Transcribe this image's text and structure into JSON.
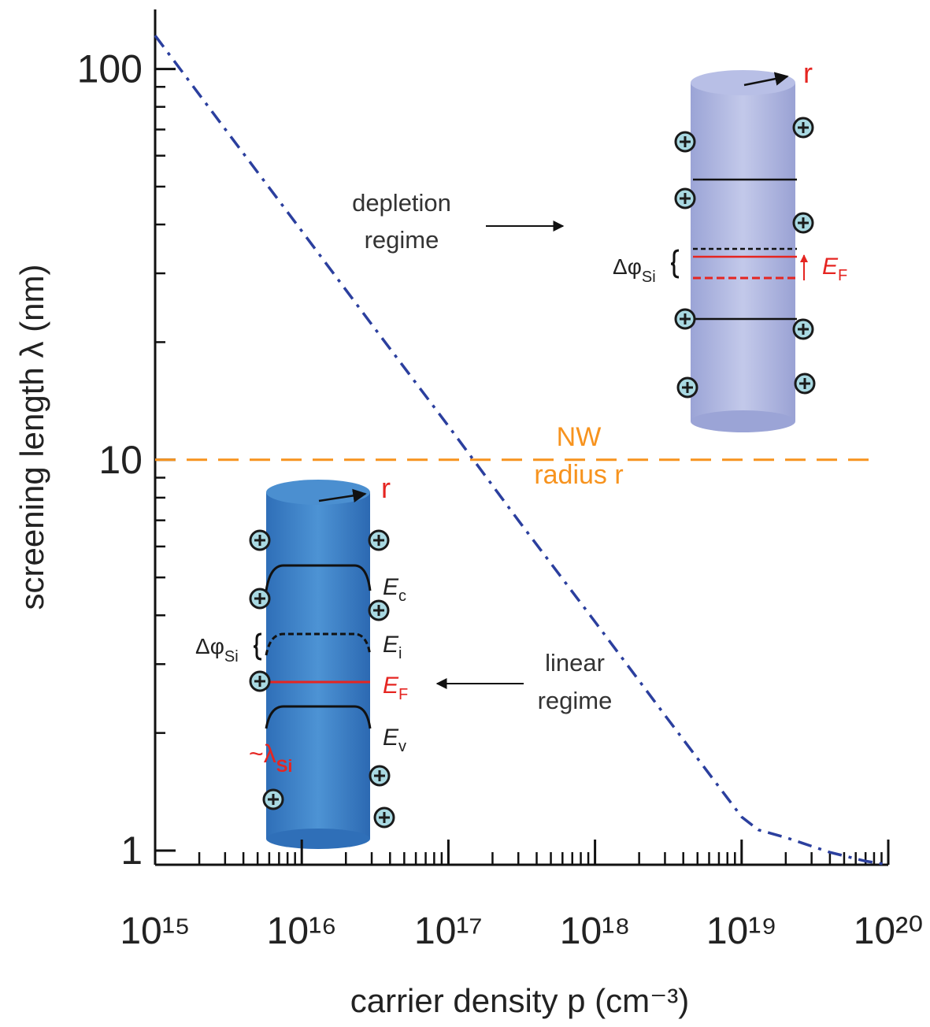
{
  "chart_data": {
    "type": "line",
    "x_label": "carrier density p (cm⁻³)",
    "y_label": "screening length λ (nm)",
    "log_x": true,
    "log_y": true,
    "color": "#2b3f9e",
    "x": [
      1000000000000000.0,
      3000000000000000.0,
      1e+16,
      3e+16,
      1e+17,
      3e+17,
      1e+18,
      3e+18,
      1e+19,
      1.3e+19,
      2e+19,
      4e+19,
      7e+19,
      1e+20
    ],
    "values": [
      121.7,
      70.2,
      38.5,
      22.2,
      12.2,
      7.0,
      3.85,
      2.22,
      1.22,
      1.13,
      1.08,
      0.99,
      0.94,
      0.92
    ],
    "xlim": [
      1000000000000000.0,
      1e+20
    ],
    "ylim": [
      0.92,
      142
    ],
    "xticks": [
      {
        "value": 1000000000000000.0,
        "label": "10¹⁵"
      },
      {
        "value": 1e+16,
        "label": "10¹⁶"
      },
      {
        "value": 1e+17,
        "label": "10¹⁷"
      },
      {
        "value": 1e+18,
        "label": "10¹⁸"
      },
      {
        "value": 1e+19,
        "label": "10¹⁹"
      },
      {
        "value": 1e+20,
        "label": "10²⁰"
      }
    ],
    "yticks": [
      1,
      10,
      100
    ],
    "xminor_ticks": [
      2000000000000000.0,
      3000000000000000.0,
      4000000000000000.0,
      5000000000000000.0,
      6000000000000000.0,
      7000000000000000.0,
      8000000000000000.0,
      9000000000000000.0,
      2e+16,
      3e+16,
      4e+16,
      5e+16,
      6e+16,
      7e+16,
      8e+16,
      9e+16,
      2e+17,
      3e+17,
      4e+17,
      5e+17,
      6e+17,
      7e+17,
      8e+17,
      9e+17,
      2e+18,
      3e+18,
      4e+18,
      5e+18,
      6e+18,
      7e+18,
      8e+18,
      9e+18,
      2e+19,
      3e+19,
      4e+19,
      5e+19,
      6e+19,
      7e+19,
      8e+19,
      9e+19
    ],
    "yminor_ticks": [
      2,
      3,
      4,
      5,
      6,
      7,
      8,
      9,
      20,
      30,
      40,
      50,
      60,
      70,
      80,
      90
    ],
    "reference_line": {
      "value": 10,
      "color": "#f7931e",
      "label": [
        "NW",
        "radius r"
      ]
    },
    "annotations": {
      "depletion": [
        "depletion",
        "regime"
      ],
      "linear": [
        "linear",
        "regime"
      ],
      "inset_depletion": {
        "radius": "r",
        "delta_phi": "Δφ",
        "delta_phi_sub": "Si",
        "fermi": "E",
        "fermi_sub": "F"
      },
      "inset_linear": {
        "radius": "r",
        "delta_phi": "Δφ",
        "delta_phi_sub": "Si",
        "conduction": "E",
        "conduction_sub": "c",
        "intrinsic": "E",
        "intrinsic_sub": "i",
        "fermi": "E",
        "fermi_sub": "F",
        "valence": "E",
        "valence_sub": "v",
        "screening": "~λ",
        "screening_sub": "Si"
      }
    }
  }
}
